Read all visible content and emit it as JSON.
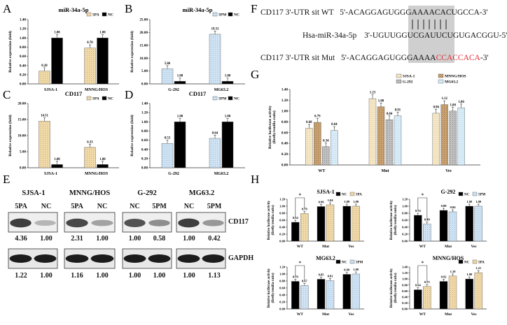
{
  "panel_letters": {
    "A": "A",
    "B": "B",
    "C": "C",
    "D": "D",
    "E": "E",
    "F": "F",
    "G": "G",
    "H": "H"
  },
  "colors": {
    "pa": "#f0d9a8",
    "pm": "#bcd8ee",
    "nc": "#000000",
    "pattern_a": "#e8cd8f",
    "pattern_g1": "#f5e7c5",
    "pattern_g2": "#c9a06e",
    "pattern_g3": "#b8b8b8",
    "pattern_g4": "#d9ecf8",
    "mut_red": "#e0303a",
    "highlight": "#cfcfcf"
  },
  "panelF": {
    "row1_label": "CD117 3'-UTR sit WT",
    "row1_seq_pre": "5'-ACAGGAGUGGGAAAA",
    "row1_seq_hl": "CACUGCCA",
    "row1_seq_post": "-3'",
    "row2_label": "Hsa-miR-34a-5p",
    "row2_seq": "3'-UGUUGGUCGAUUCUGUGACGGU-5'",
    "row3_label": "CD117 3'-UTR sit Mut",
    "row3_seq_pre": "5'-ACAGGAGUGGGAAAA",
    "row3_seq_red": "CCACCACA",
    "row3_seq_post": "-3'"
  },
  "panelE": {
    "groups": [
      {
        "title": "SJSA-1",
        "lanes": [
          "5PA",
          "NC"
        ],
        "cd117": [
          "4.36",
          "1.00"
        ],
        "gapdh": [
          "1.22",
          "1.00"
        ]
      },
      {
        "title": "MNNG/HOS",
        "lanes": [
          "5PA",
          "NC"
        ],
        "cd117": [
          "2.31",
          "1.00"
        ],
        "gapdh": [
          "1.16",
          "1.00"
        ]
      },
      {
        "title": "G-292",
        "lanes": [
          "NC",
          "5PM"
        ],
        "cd117": [
          "1.00",
          "0.58"
        ],
        "gapdh": [
          "1.00",
          "1.00"
        ]
      },
      {
        "title": "MG63.2",
        "lanes": [
          "NC",
          "5PM"
        ],
        "cd117": [
          "1.00",
          "0.42"
        ],
        "gapdh": [
          "1.00",
          "1.13"
        ]
      }
    ],
    "cd117_label": "CD117",
    "gapdh_label": "GAPDH"
  },
  "chart_data": [
    {
      "id": "A",
      "type": "bar",
      "title": "miR-34a-5p",
      "ylabel": "Relative expression (fold)",
      "ylim": [
        0,
        1.4
      ],
      "yticks": [
        "0.00",
        "0.20",
        "0.40",
        "0.60",
        "0.80",
        "1.00",
        "1.20",
        "1.40"
      ],
      "categories": [
        "SJSA-1",
        "MNNG/HOS"
      ],
      "series": [
        {
          "name": "5PA",
          "values": [
            0.28,
            0.78
          ],
          "labels": [
            "0.28",
            "0.78"
          ]
        },
        {
          "name": "NC",
          "values": [
            1.0,
            1.0
          ],
          "labels": [
            "1.00",
            "1.00"
          ]
        }
      ],
      "legend": [
        "5PA",
        "NC"
      ]
    },
    {
      "id": "B",
      "type": "bar",
      "title": "miR-34a-5p",
      "ylabel": "Relative expression (fold)",
      "ylim": [
        0,
        25
      ],
      "yticks": [
        "0.00",
        "5.00",
        "10.00",
        "15.00",
        "20.00",
        "25.00"
      ],
      "categories": [
        "G-292",
        "MG63.2"
      ],
      "series": [
        {
          "name": "5PM",
          "values": [
            5.86,
            19.31
          ],
          "labels": [
            "5.86",
            "19.31"
          ]
        },
        {
          "name": "NC",
          "values": [
            1.0,
            1.0
          ],
          "labels": [
            "1.00",
            "1.00"
          ]
        }
      ],
      "legend": [
        "5PM",
        "NC"
      ]
    },
    {
      "id": "C",
      "type": "bar",
      "title": "CD117",
      "ylabel": "Relative expression (fold)",
      "ylim": [
        0,
        20
      ],
      "yticks": [
        "0.00",
        "5.00",
        "10.00",
        "15.00",
        "20.00"
      ],
      "categories": [
        "SJSA-1",
        "MNNG/HOS"
      ],
      "series": [
        {
          "name": "5PA",
          "values": [
            14.51,
            6.33
          ],
          "labels": [
            "14.51",
            "6.33"
          ]
        },
        {
          "name": "NC",
          "values": [
            1.0,
            1.0
          ],
          "labels": [
            "1.00",
            "1.00"
          ]
        }
      ],
      "legend": [
        "5PA",
        "NC"
      ]
    },
    {
      "id": "D",
      "type": "bar",
      "title": "CD117",
      "ylabel": "Relative expression (fold)",
      "ylim": [
        0,
        1.4
      ],
      "yticks": [
        "0.00",
        "0.20",
        "0.40",
        "0.60",
        "0.80",
        "1.00",
        "1.20",
        "1.40"
      ],
      "categories": [
        "G-292",
        "MG63.2"
      ],
      "series": [
        {
          "name": "5PM",
          "values": [
            0.53,
            0.64
          ],
          "labels": [
            "0.53",
            "0.64"
          ]
        },
        {
          "name": "NC",
          "values": [
            1.0,
            1.0
          ],
          "labels": [
            "1.00",
            "1.00"
          ]
        }
      ],
      "legend": [
        "5PM",
        "NC"
      ]
    },
    {
      "id": "G",
      "type": "bar",
      "title": "",
      "ylabel": "Relative luciferase activity (firefly/renilla ratio)",
      "ylim": [
        0,
        1.4
      ],
      "yticks": [
        "0.00",
        "0.20",
        "0.40",
        "0.60",
        "0.80",
        "1.00",
        "1.20",
        "1.40"
      ],
      "categories": [
        "WT",
        "Mut",
        "Vec"
      ],
      "series": [
        {
          "name": "SJSA-1",
          "values": [
            0.68,
            1.23,
            0.96
          ],
          "labels": [
            "0.68",
            "1.23",
            "0.96"
          ]
        },
        {
          "name": "MNNG/HOS",
          "values": [
            0.79,
            1.08,
            1.12
          ],
          "labels": [
            "0.79",
            "1.08",
            "1.12"
          ]
        },
        {
          "name": "G-292",
          "values": [
            0.34,
            0.84,
            1.0
          ],
          "labels": [
            "0.34",
            "0.84",
            "1.00"
          ]
        },
        {
          "name": "MG63.2",
          "values": [
            0.64,
            0.91,
            1.06
          ],
          "labels": [
            "0.64",
            "0.91",
            "1.06"
          ]
        }
      ],
      "legend": [
        "SJSA-1",
        "MNNG/HOS",
        "G-292",
        "MG63.2"
      ]
    },
    {
      "id": "H1",
      "type": "bar",
      "title": "SJSA-1",
      "ylabel": "Relative luciferase activity (firefly/renilla ratio)",
      "ylim": [
        0,
        1.2
      ],
      "yticks": [
        "0.00",
        "0.20",
        "0.40",
        "0.60",
        "0.80",
        "1.00",
        "1.20"
      ],
      "categories": [
        "WT",
        "Mut",
        "Vec"
      ],
      "series": [
        {
          "name": "NC",
          "values": [
            0.54,
            0.99,
            1.0
          ],
          "labels": [
            "0.54",
            "0.99",
            "1.00"
          ]
        },
        {
          "name": "5PA",
          "values": [
            0.79,
            1.04,
            1.0
          ],
          "labels": [
            "0.79",
            "1.04",
            "1.00"
          ]
        }
      ],
      "legend": [
        "NC",
        "5PA"
      ],
      "sig": "*"
    },
    {
      "id": "H2",
      "type": "bar",
      "title": "G-292",
      "ylabel": "Relative luciferase activity (firefly/renilla ratio)",
      "ylim": [
        0,
        1.2
      ],
      "yticks": [
        "0.00",
        "0.20",
        "0.40",
        "0.60",
        "0.80",
        "1.00",
        "1.20"
      ],
      "categories": [
        "WT",
        "Mut",
        "Vec"
      ],
      "series": [
        {
          "name": "NC",
          "values": [
            0.74,
            0.88,
            1.0
          ],
          "labels": [
            "0.74",
            "0.88",
            "1.00"
          ]
        },
        {
          "name": "5PM",
          "values": [
            0.49,
            0.84,
            1.0
          ],
          "labels": [
            "0.49",
            "0.84",
            "1.00"
          ]
        }
      ],
      "legend": [
        "NC",
        "5PM"
      ],
      "sig": "*"
    },
    {
      "id": "H3",
      "type": "bar",
      "title": "MG63.2",
      "ylabel": "Relative luciferase activity (firefly/renilla ratio)",
      "ylim": [
        0,
        1.2
      ],
      "yticks": [
        "0.00",
        "0.20",
        "0.40",
        "0.60",
        "0.80",
        "1.00",
        "1.20"
      ],
      "categories": [
        "WT",
        "Mut",
        "Vec"
      ],
      "series": [
        {
          "name": "NC",
          "values": [
            0.79,
            0.85,
            0.99
          ],
          "labels": [
            "0.79",
            "0.85",
            "0.99"
          ]
        },
        {
          "name": "5PM",
          "values": [
            0.67,
            0.81,
            1.0
          ],
          "labels": [
            "0.67",
            "0.81",
            "1.00"
          ]
        }
      ],
      "legend": [
        "NC",
        "5PM"
      ],
      "sig": "*"
    },
    {
      "id": "H4",
      "type": "bar",
      "title": "MNNG/HOS",
      "ylabel": "Relative luciferase activity (firefly/renilla ratio)",
      "ylim": [
        0,
        1.4
      ],
      "yticks": [
        "0.00",
        "0.20",
        "0.40",
        "0.60",
        "0.80",
        "1.00",
        "1.20",
        "1.40"
      ],
      "categories": [
        "WT",
        "Mut",
        "Vec"
      ],
      "series": [
        {
          "name": "NC",
          "values": [
            0.64,
            0.92,
            1.0
          ],
          "labels": [
            "0.64",
            "0.92",
            "1.00"
          ]
        },
        {
          "name": "5PA",
          "values": [
            0.75,
            1.1,
            1.21
          ],
          "labels": [
            "0.75",
            "1.10",
            "1.21"
          ]
        }
      ],
      "legend": [
        "NC",
        "5PA"
      ],
      "sig": "*"
    }
  ]
}
